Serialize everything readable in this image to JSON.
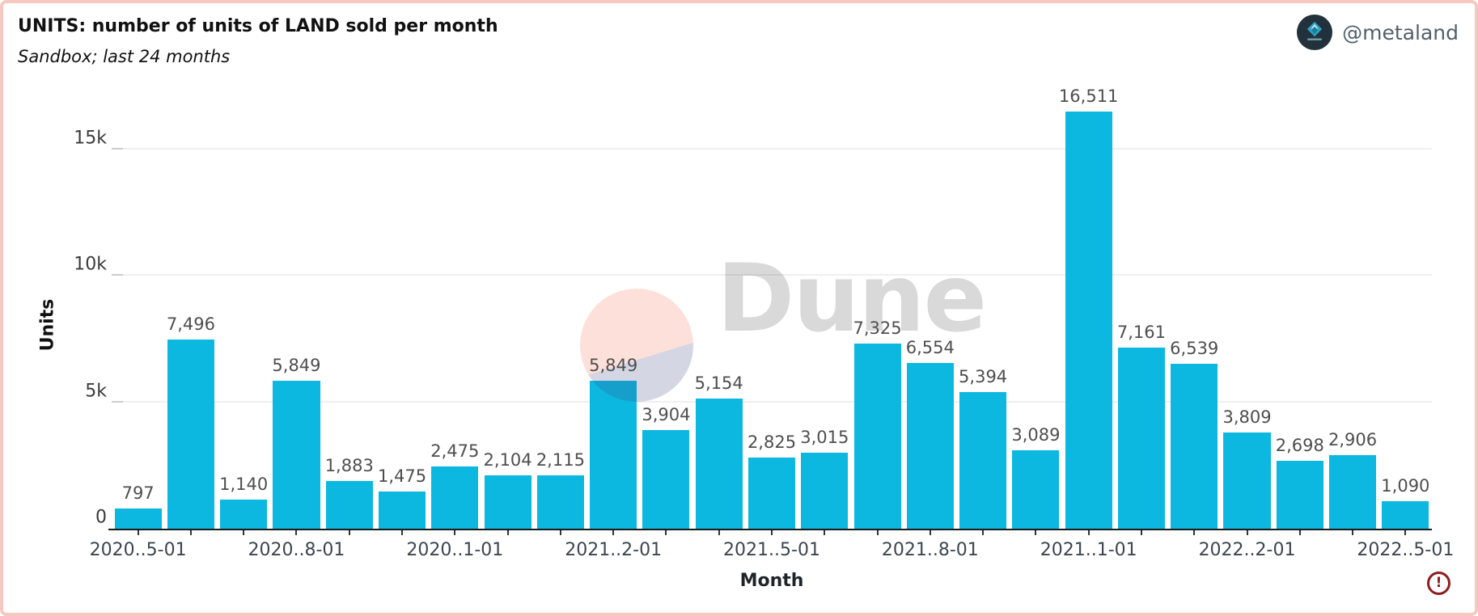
{
  "header": {
    "title": "UNITS: number of units of LAND sold per month",
    "subtitle": "Sandbox; last 24 months"
  },
  "author": {
    "handle": "@metaland"
  },
  "watermark": {
    "brand": "Dune"
  },
  "alert": {
    "symbol": "!"
  },
  "chart_data": {
    "type": "bar",
    "title": "UNITS: number of units of LAND sold per month",
    "subtitle": "Sandbox; last 24 months",
    "xlabel": "Month",
    "ylabel": "Units",
    "bar_color": "#0cb8e0",
    "grid": "horizontal-light",
    "legend": "none",
    "ylim": [
      0,
      16511
    ],
    "y_ticks": [
      {
        "value": 0,
        "label": "0"
      },
      {
        "value": 5000,
        "label": "5k"
      },
      {
        "value": 10000,
        "label": "10k"
      },
      {
        "value": 15000,
        "label": "15k"
      }
    ],
    "values": [
      797,
      7496,
      1140,
      5849,
      1883,
      1475,
      2475,
      2104,
      2115,
      5849,
      3904,
      5154,
      2825,
      3015,
      7325,
      6554,
      5394,
      3089,
      16511,
      7161,
      6539,
      3809,
      2698,
      2906,
      1090
    ],
    "bar_labels": [
      "797",
      "7,496",
      "1,140",
      "5,849",
      "1,883",
      "1,475",
      "2,475",
      "2,104",
      "2,115",
      "5,849",
      "3,904",
      "5,154",
      "2,825",
      "3,015",
      "7,325",
      "6,554",
      "5,394",
      "3,089",
      "16,511",
      "7,161",
      "6,539",
      "3,809",
      "2,698",
      "2,906",
      "1,090"
    ],
    "x_ticks": [
      {
        "index": 0,
        "label": "2020..5-01"
      },
      {
        "index": 3,
        "label": "2020..8-01"
      },
      {
        "index": 6,
        "label": "2020..1-01"
      },
      {
        "index": 9,
        "label": "2021..2-01"
      },
      {
        "index": 12,
        "label": "2021..5-01"
      },
      {
        "index": 15,
        "label": "2021..8-01"
      },
      {
        "index": 18,
        "label": "2021..1-01"
      },
      {
        "index": 21,
        "label": "2022..2-01"
      },
      {
        "index": 24,
        "label": "2022..5-01"
      }
    ]
  }
}
